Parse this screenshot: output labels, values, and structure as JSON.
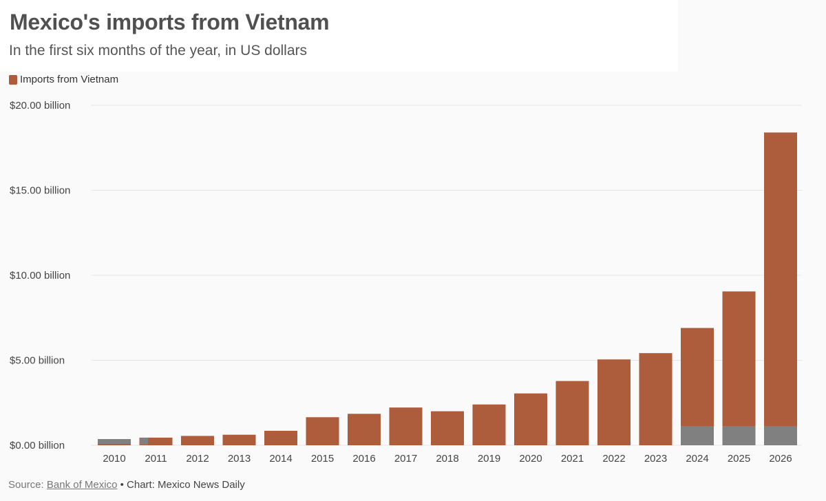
{
  "chart_data": {
    "type": "bar",
    "title": "Mexico's imports from Vietnam",
    "subtitle": "In the first six months of the year, in US dollars",
    "legend": [
      {
        "name": "Imports from Vietnam",
        "color": "#ad5c3c"
      }
    ],
    "legend_position": "top-left",
    "categories": [
      "2010",
      "2011",
      "2012",
      "2013",
      "2014",
      "2015",
      "2016",
      "2017",
      "2018",
      "2019",
      "2020",
      "2021",
      "2022",
      "2023",
      "2024",
      "2025",
      "2026"
    ],
    "series": [
      {
        "name": "Imports from Vietnam",
        "values": [
          0.3,
          0.45,
          0.55,
          0.62,
          0.85,
          1.65,
          1.85,
          2.22,
          2.0,
          2.4,
          3.05,
          3.78,
          5.05,
          5.42,
          6.9,
          9.05,
          18.4
        ]
      }
    ],
    "ylim": [
      0,
      20
    ],
    "y_ticks": [
      0,
      5,
      10,
      15,
      20
    ],
    "y_tick_labels": [
      "$0.00 billion",
      "$5.00 billion",
      "$10.00 billion",
      "$15.00 billion",
      "$20.00 billion"
    ],
    "grid": true,
    "xlabel": "",
    "ylabel": ""
  },
  "colors": {
    "bar": "#ad5c3c",
    "grey_band": "#808080",
    "grid": "#e5e5e5"
  },
  "footer": {
    "source_label": "Source:",
    "source_link": "Bank of Mexico",
    "separator": " • ",
    "credit": "Chart: Mexico News Daily"
  }
}
